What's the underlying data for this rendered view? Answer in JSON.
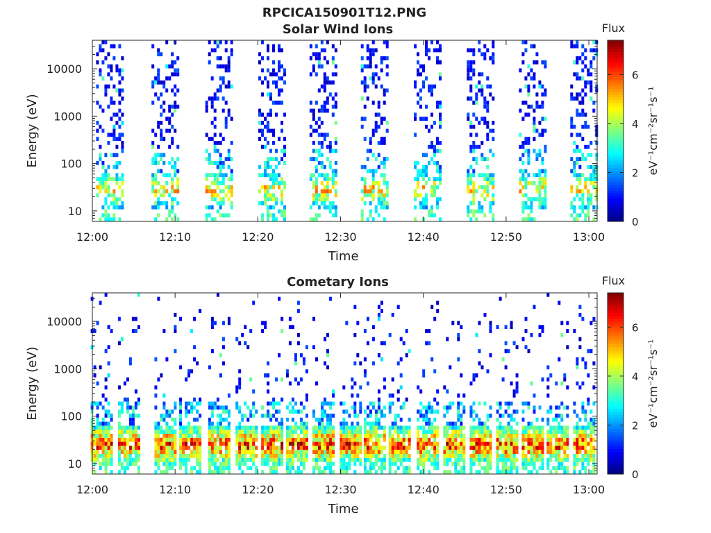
{
  "figure_title": "RPCICA150901T12.PNG",
  "chart_data": [
    {
      "type": "heatmap",
      "title": "Solar Wind Ions",
      "xlabel": "Time",
      "ylabel": "Energy (eV)",
      "x_tick_labels": [
        "12:00",
        "12:10",
        "12:20",
        "12:30",
        "12:40",
        "12:50",
        "13:00"
      ],
      "x_ticks_minutes": [
        0,
        10,
        20,
        30,
        40,
        50,
        60
      ],
      "xlim_minutes": [
        0,
        61
      ],
      "y_scale": "log",
      "y_tick_values": [
        10,
        100,
        1000,
        10000
      ],
      "y_tick_labels": [
        "10",
        "100",
        "1000",
        "10000"
      ],
      "ylim": [
        6,
        40000
      ],
      "colorbar": {
        "title": "Flux",
        "unit": "eV⁻¹cm⁻²sr⁻¹s⁻¹",
        "range": [
          0,
          7.4
        ],
        "tick_values": [
          0,
          2,
          4,
          6
        ],
        "tick_labels": [
          "0",
          "2",
          "4",
          "6"
        ],
        "colormap": "jet"
      },
      "sweep_center_minutes": [
        2.0,
        8.7,
        15.2,
        21.6,
        27.8,
        34.0,
        40.4,
        46.8,
        53.1,
        59.3
      ],
      "low_energy_peak_flux": 5.5,
      "high_energy_typical_flux": 1.0,
      "grid": false
    },
    {
      "type": "heatmap",
      "title": "Cometary Ions",
      "xlabel": "Time",
      "ylabel": "Energy (eV)",
      "x_tick_labels": [
        "12:00",
        "12:10",
        "12:20",
        "12:30",
        "12:40",
        "12:50",
        "13:00"
      ],
      "x_ticks_minutes": [
        0,
        10,
        20,
        30,
        40,
        50,
        60
      ],
      "xlim_minutes": [
        0,
        61
      ],
      "y_scale": "log",
      "y_tick_values": [
        10,
        100,
        1000,
        10000
      ],
      "y_tick_labels": [
        "10",
        "100",
        "1000",
        "10000"
      ],
      "ylim": [
        6,
        40000
      ],
      "colorbar": {
        "title": "Flux",
        "unit": "eV⁻¹cm⁻²sr⁻¹s⁻¹",
        "range": [
          0,
          7.4
        ],
        "tick_values": [
          0,
          2,
          4,
          6
        ],
        "tick_labels": [
          "0",
          "2",
          "4",
          "6"
        ],
        "colormap": "jet"
      },
      "sweep_center_minutes": [
        1.0,
        4.3,
        8.7,
        11.7,
        15.2,
        18.5,
        21.6,
        24.6,
        27.8,
        31.1,
        34.0,
        37.0,
        40.4,
        43.6,
        46.8,
        50.0,
        53.1,
        56.1,
        59.3
      ],
      "low_energy_peak_flux": 7.0,
      "high_energy_typical_flux": 1.0,
      "grid": false
    }
  ]
}
